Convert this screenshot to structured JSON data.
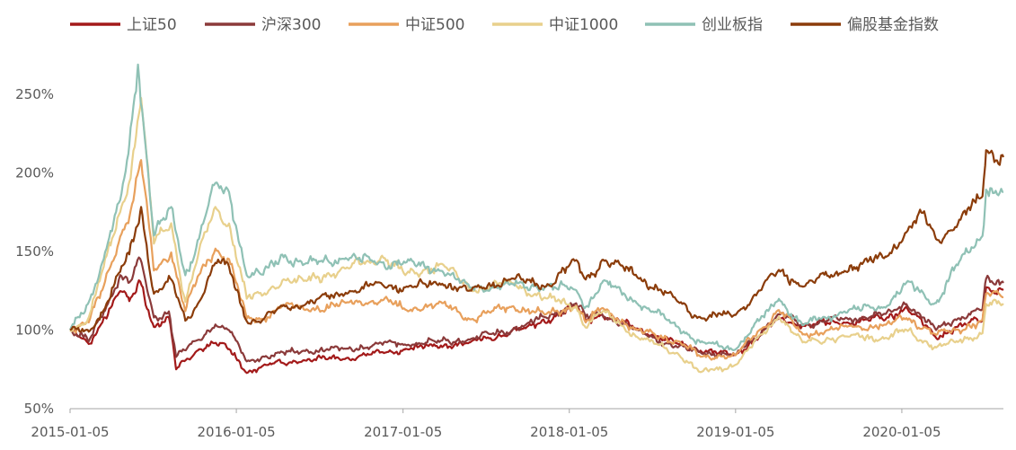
{
  "chart_data": {
    "type": "line",
    "title": "",
    "xlabel": "",
    "ylabel": "",
    "x_start": "2015-01-05",
    "x_end": "2020-08-15",
    "xticks": [
      "2015-01-05",
      "2016-01-05",
      "2017-01-05",
      "2018-01-05",
      "2019-01-05",
      "2020-01-05"
    ],
    "ylim": [
      50,
      270
    ],
    "yticks": [
      50,
      100,
      150,
      200,
      250
    ],
    "ytick_labels": [
      "50%",
      "100%",
      "150%",
      "200%",
      "250%"
    ],
    "grid": false,
    "legend_position": "top",
    "series": [
      {
        "name": "上证50",
        "color": "#a31a1a",
        "points": [
          [
            "2015-01-05",
            100
          ],
          [
            "2015-02-15",
            91
          ],
          [
            "2015-03-20",
            108
          ],
          [
            "2015-04-25",
            125
          ],
          [
            "2015-05-15",
            118
          ],
          [
            "2015-06-08",
            131
          ],
          [
            "2015-07-08",
            102
          ],
          [
            "2015-08-10",
            108
          ],
          [
            "2015-08-26",
            75
          ],
          [
            "2015-10-15",
            88
          ],
          [
            "2015-11-15",
            92
          ],
          [
            "2015-12-20",
            88
          ],
          [
            "2016-01-28",
            73
          ],
          [
            "2016-03-01",
            77
          ],
          [
            "2016-06-01",
            81
          ],
          [
            "2016-09-01",
            82
          ],
          [
            "2016-12-01",
            86
          ],
          [
            "2017-01-10",
            88
          ],
          [
            "2017-06-01",
            92
          ],
          [
            "2017-10-01",
            101
          ],
          [
            "2018-01-20",
            115
          ],
          [
            "2018-02-10",
            106
          ],
          [
            "2018-03-15",
            110
          ],
          [
            "2018-06-01",
            101
          ],
          [
            "2018-09-01",
            91
          ],
          [
            "2018-10-20",
            87
          ],
          [
            "2019-01-05",
            84
          ],
          [
            "2019-04-10",
            107
          ],
          [
            "2019-06-01",
            103
          ],
          [
            "2019-09-01",
            105
          ],
          [
            "2019-12-01",
            107
          ],
          [
            "2020-01-15",
            115
          ],
          [
            "2020-03-20",
            95
          ],
          [
            "2020-05-01",
            102
          ],
          [
            "2020-06-30",
            106
          ],
          [
            "2020-07-08",
            127
          ],
          [
            "2020-08-15",
            126
          ]
        ]
      },
      {
        "name": "沪深300",
        "color": "#8b3a3a",
        "points": [
          [
            "2015-01-05",
            100
          ],
          [
            "2015-02-15",
            93
          ],
          [
            "2015-03-20",
            112
          ],
          [
            "2015-04-25",
            135
          ],
          [
            "2015-05-15",
            130
          ],
          [
            "2015-06-08",
            145
          ],
          [
            "2015-07-08",
            108
          ],
          [
            "2015-08-10",
            112
          ],
          [
            "2015-08-26",
            83
          ],
          [
            "2015-10-15",
            94
          ],
          [
            "2015-11-20",
            104
          ],
          [
            "2015-12-20",
            100
          ],
          [
            "2016-01-28",
            80
          ],
          [
            "2016-03-01",
            83
          ],
          [
            "2016-06-01",
            87
          ],
          [
            "2016-09-01",
            88
          ],
          [
            "2016-12-01",
            92
          ],
          [
            "2017-01-10",
            91
          ],
          [
            "2017-06-01",
            94
          ],
          [
            "2017-10-01",
            103
          ],
          [
            "2018-01-20",
            117
          ],
          [
            "2018-02-10",
            108
          ],
          [
            "2018-03-15",
            111
          ],
          [
            "2018-06-01",
            100
          ],
          [
            "2018-09-01",
            89
          ],
          [
            "2018-10-20",
            86
          ],
          [
            "2019-01-05",
            84
          ],
          [
            "2019-04-10",
            110
          ],
          [
            "2019-06-01",
            104
          ],
          [
            "2019-09-01",
            107
          ],
          [
            "2019-12-01",
            110
          ],
          [
            "2020-01-15",
            117
          ],
          [
            "2020-03-20",
            100
          ],
          [
            "2020-05-01",
            107
          ],
          [
            "2020-06-30",
            113
          ],
          [
            "2020-07-08",
            132
          ],
          [
            "2020-08-15",
            130
          ]
        ]
      },
      {
        "name": "中证500",
        "color": "#e8a05c",
        "points": [
          [
            "2015-01-05",
            100
          ],
          [
            "2015-02-15",
            105
          ],
          [
            "2015-03-20",
            128
          ],
          [
            "2015-04-25",
            160
          ],
          [
            "2015-05-15",
            172
          ],
          [
            "2015-06-10",
            208
          ],
          [
            "2015-07-08",
            138
          ],
          [
            "2015-08-15",
            150
          ],
          [
            "2015-09-15",
            112
          ],
          [
            "2015-10-15",
            135
          ],
          [
            "2015-11-20",
            152
          ],
          [
            "2015-12-20",
            145
          ],
          [
            "2016-01-28",
            107
          ],
          [
            "2016-03-01",
            107
          ],
          [
            "2016-04-15",
            116
          ],
          [
            "2016-06-01",
            113
          ],
          [
            "2016-09-01",
            117
          ],
          [
            "2016-11-20",
            119
          ],
          [
            "2017-01-10",
            113
          ],
          [
            "2017-04-01",
            117
          ],
          [
            "2017-06-01",
            107
          ],
          [
            "2017-09-01",
            115
          ],
          [
            "2017-11-15",
            110
          ],
          [
            "2018-01-20",
            116
          ],
          [
            "2018-02-10",
            105
          ],
          [
            "2018-03-20",
            114
          ],
          [
            "2018-06-01",
            100
          ],
          [
            "2018-09-01",
            93
          ],
          [
            "2018-10-20",
            83
          ],
          [
            "2019-01-05",
            84
          ],
          [
            "2019-04-10",
            113
          ],
          [
            "2019-06-01",
            97
          ],
          [
            "2019-09-01",
            102
          ],
          [
            "2019-12-01",
            103
          ],
          [
            "2020-01-15",
            108
          ],
          [
            "2020-03-20",
            97
          ],
          [
            "2020-05-01",
            100
          ],
          [
            "2020-06-30",
            106
          ],
          [
            "2020-07-08",
            123
          ],
          [
            "2020-08-15",
            121
          ]
        ]
      },
      {
        "name": "中证1000",
        "color": "#e8d08c",
        "points": [
          [
            "2015-01-05",
            100
          ],
          [
            "2015-02-15",
            108
          ],
          [
            "2015-03-20",
            140
          ],
          [
            "2015-04-25",
            175
          ],
          [
            "2015-05-15",
            195
          ],
          [
            "2015-06-10",
            248
          ],
          [
            "2015-07-08",
            155
          ],
          [
            "2015-08-15",
            168
          ],
          [
            "2015-09-15",
            118
          ],
          [
            "2015-10-15",
            150
          ],
          [
            "2015-11-20",
            178
          ],
          [
            "2015-12-20",
            168
          ],
          [
            "2016-01-28",
            120
          ],
          [
            "2016-03-01",
            122
          ],
          [
            "2016-04-15",
            132
          ],
          [
            "2016-06-01",
            131
          ],
          [
            "2016-09-01",
            139
          ],
          [
            "2016-11-20",
            147
          ],
          [
            "2017-01-10",
            135
          ],
          [
            "2017-04-01",
            142
          ],
          [
            "2017-06-01",
            126
          ],
          [
            "2017-09-01",
            130
          ],
          [
            "2017-11-15",
            120
          ],
          [
            "2018-01-20",
            115
          ],
          [
            "2018-02-10",
            102
          ],
          [
            "2018-03-20",
            112
          ],
          [
            "2018-06-01",
            96
          ],
          [
            "2018-09-01",
            85
          ],
          [
            "2018-10-20",
            73
          ],
          [
            "2019-01-05",
            78
          ],
          [
            "2019-04-10",
            109
          ],
          [
            "2019-06-01",
            92
          ],
          [
            "2019-09-01",
            96
          ],
          [
            "2019-12-01",
            95
          ],
          [
            "2020-01-15",
            100
          ],
          [
            "2020-03-20",
            89
          ],
          [
            "2020-05-01",
            92
          ],
          [
            "2020-06-30",
            98
          ],
          [
            "2020-07-08",
            117
          ],
          [
            "2020-08-15",
            116
          ]
        ]
      },
      {
        "name": "创业板指",
        "color": "#8fc1b5",
        "points": [
          [
            "2015-01-05",
            100
          ],
          [
            "2015-02-15",
            118
          ],
          [
            "2015-03-20",
            145
          ],
          [
            "2015-04-25",
            182
          ],
          [
            "2015-05-15",
            218
          ],
          [
            "2015-06-03",
            270
          ],
          [
            "2015-07-08",
            160
          ],
          [
            "2015-08-15",
            178
          ],
          [
            "2015-09-15",
            135
          ],
          [
            "2015-10-15",
            158
          ],
          [
            "2015-11-20",
            193
          ],
          [
            "2015-12-20",
            188
          ],
          [
            "2016-01-28",
            135
          ],
          [
            "2016-03-01",
            135
          ],
          [
            "2016-04-15",
            148
          ],
          [
            "2016-06-01",
            142
          ],
          [
            "2016-09-01",
            146
          ],
          [
            "2016-11-20",
            143
          ],
          [
            "2017-01-10",
            143
          ],
          [
            "2017-04-01",
            138
          ],
          [
            "2017-06-01",
            127
          ],
          [
            "2017-09-01",
            129
          ],
          [
            "2017-11-15",
            128
          ],
          [
            "2018-01-20",
            125
          ],
          [
            "2018-02-10",
            115
          ],
          [
            "2018-03-20",
            131
          ],
          [
            "2018-06-01",
            118
          ],
          [
            "2018-09-01",
            102
          ],
          [
            "2018-10-20",
            92
          ],
          [
            "2019-01-05",
            88
          ],
          [
            "2019-04-10",
            120
          ],
          [
            "2019-06-01",
            103
          ],
          [
            "2019-09-01",
            112
          ],
          [
            "2019-12-01",
            115
          ],
          [
            "2020-01-15",
            130
          ],
          [
            "2020-03-20",
            117
          ],
          [
            "2020-05-01",
            140
          ],
          [
            "2020-06-30",
            160
          ],
          [
            "2020-07-08",
            190
          ],
          [
            "2020-08-15",
            188
          ]
        ]
      },
      {
        "name": "偏股基金指数",
        "color": "#8b3c0a",
        "points": [
          [
            "2015-01-05",
            100
          ],
          [
            "2015-02-15",
            99
          ],
          [
            "2015-03-20",
            113
          ],
          [
            "2015-04-25",
            137
          ],
          [
            "2015-05-15",
            148
          ],
          [
            "2015-06-10",
            178
          ],
          [
            "2015-07-08",
            123
          ],
          [
            "2015-08-15",
            132
          ],
          [
            "2015-09-15",
            106
          ],
          [
            "2015-10-15",
            118
          ],
          [
            "2015-11-20",
            143
          ],
          [
            "2015-12-20",
            140
          ],
          [
            "2016-01-28",
            106
          ],
          [
            "2016-03-01",
            106
          ],
          [
            "2016-04-15",
            115
          ],
          [
            "2016-06-01",
            116
          ],
          [
            "2016-09-01",
            124
          ],
          [
            "2016-11-20",
            129
          ],
          [
            "2017-01-10",
            127
          ],
          [
            "2017-04-01",
            130
          ],
          [
            "2017-06-01",
            125
          ],
          [
            "2017-09-01",
            133
          ],
          [
            "2017-11-15",
            128
          ],
          [
            "2018-01-20",
            144
          ],
          [
            "2018-02-10",
            132
          ],
          [
            "2018-03-20",
            145
          ],
          [
            "2018-06-01",
            135
          ],
          [
            "2018-09-01",
            118
          ],
          [
            "2018-10-20",
            108
          ],
          [
            "2019-01-05",
            110
          ],
          [
            "2019-04-10",
            138
          ],
          [
            "2019-06-01",
            128
          ],
          [
            "2019-09-01",
            138
          ],
          [
            "2019-12-01",
            147
          ],
          [
            "2020-01-15",
            162
          ],
          [
            "2020-02-20",
            174
          ],
          [
            "2020-03-20",
            158
          ],
          [
            "2020-05-01",
            166
          ],
          [
            "2020-06-30",
            185
          ],
          [
            "2020-07-08",
            215
          ],
          [
            "2020-08-15",
            210
          ]
        ]
      }
    ]
  }
}
